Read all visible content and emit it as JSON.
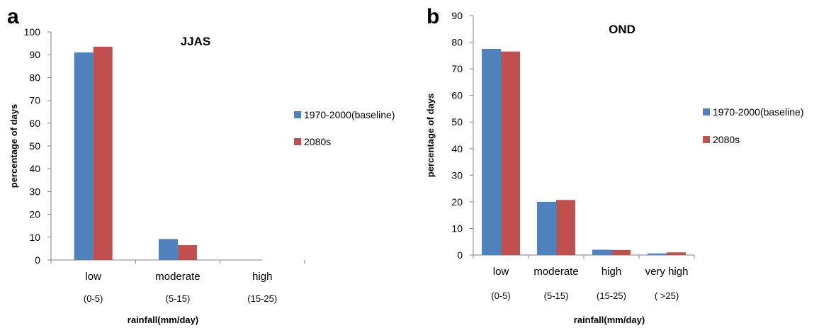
{
  "chart_data": [
    {
      "type": "bar",
      "panel": "a",
      "title": "JJAS",
      "xlabel": "rainfall(mm/day)",
      "ylabel": "percentage of days",
      "ylim": [
        0,
        100
      ],
      "ytick_step": 10,
      "categories": [
        "low",
        "moderate",
        "high"
      ],
      "category_ranges": [
        "(0-5)",
        "(5-15)",
        "(15-25)"
      ],
      "series": [
        {
          "name": "1970-2000(baseline)",
          "color": "#4f81bd",
          "values": [
            91,
            9.2,
            0
          ]
        },
        {
          "name": "2080s",
          "color": "#c0504d",
          "values": [
            93.5,
            6.5,
            0
          ]
        }
      ],
      "legend": "right",
      "grid": false
    },
    {
      "type": "bar",
      "panel": "b",
      "title": "OND",
      "xlabel": "rainfall(mm/day)",
      "ylabel": "percentage of days",
      "ylim": [
        0,
        90
      ],
      "ytick_step": 10,
      "categories": [
        "low",
        "moderate",
        "high",
        "very high"
      ],
      "category_ranges": [
        "(0-5)",
        "(5-15)",
        "(15-25)",
        "( >25)"
      ],
      "series": [
        {
          "name": "1970-2000(baseline)",
          "color": "#4f81bd",
          "values": [
            77.5,
            20,
            2,
            0.6
          ]
        },
        {
          "name": "2080s",
          "color": "#c0504d",
          "values": [
            76.5,
            20.7,
            1.9,
            1.0
          ]
        }
      ],
      "legend": "right",
      "grid": false
    }
  ]
}
